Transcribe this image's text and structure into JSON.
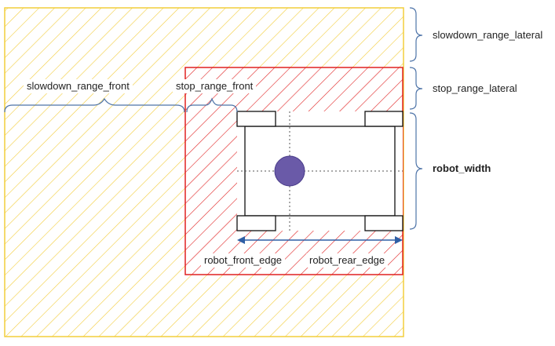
{
  "colors": {
    "slowdown_zone": "#f2cd3c",
    "stop_zone": "#e02020",
    "brace": "#4e74a8",
    "wheel_border": "#111111",
    "center_dot": "#6a5aa8",
    "arrow": "#2f5fa5"
  },
  "labels": {
    "slowdown_range_lateral": "slowdown_range_lateral",
    "stop_range_lateral": "stop_range_lateral",
    "robot_width": "robot_width",
    "slowdown_range_front": "slowdown_range_front",
    "stop_range_front": "stop_range_front",
    "robot_front_edge": "robot_front_edge",
    "robot_rear_edge": "robot_rear_edge"
  }
}
